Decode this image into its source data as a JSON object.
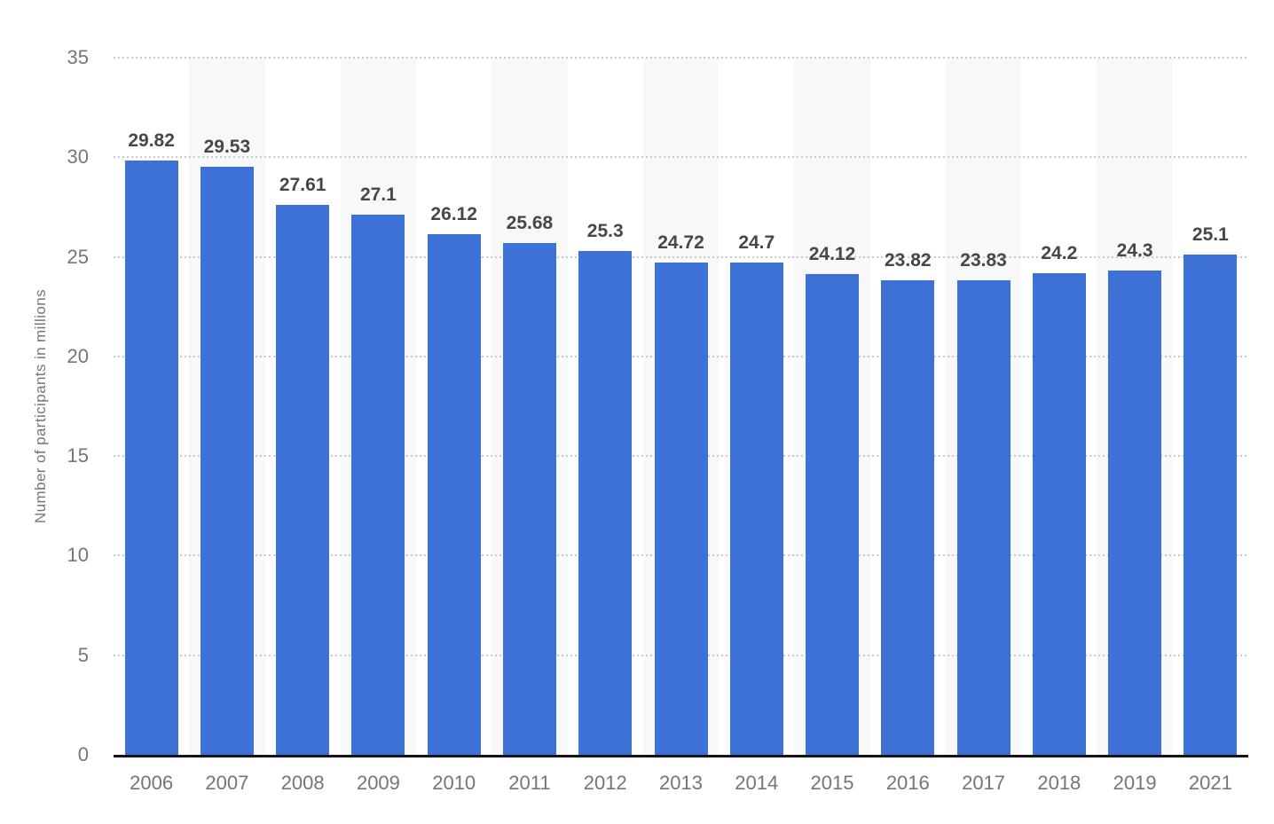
{
  "chart_data": {
    "type": "bar",
    "title": "",
    "xlabel": "",
    "ylabel": "Number of participants in millions",
    "categories": [
      "2006",
      "2007",
      "2008",
      "2009",
      "2010",
      "2011",
      "2012",
      "2013",
      "2014",
      "2015",
      "2016",
      "2017",
      "2018",
      "2019",
      "2021"
    ],
    "values": [
      29.82,
      29.53,
      27.61,
      27.1,
      26.12,
      25.68,
      25.3,
      24.72,
      24.7,
      24.12,
      23.82,
      23.83,
      24.2,
      24.3,
      25.1
    ],
    "value_labels": [
      "29.82",
      "29.53",
      "27.61",
      "27.1",
      "26.12",
      "25.68",
      "25.3",
      "24.72",
      "24.7",
      "24.12",
      "23.82",
      "23.83",
      "24.2",
      "24.3",
      "25.1"
    ],
    "ylim": [
      0,
      35
    ],
    "ytick_interval": 5,
    "ytick_labels": [
      "0",
      "5",
      "10",
      "15",
      "20",
      "25",
      "30",
      "35"
    ],
    "grid": "horizontal-dotted",
    "legend": "none",
    "bar_color": "#3e71d5",
    "band_color": "#f8f8f8",
    "value_label_color": "#474747",
    "axis_text_color": "#757575"
  }
}
